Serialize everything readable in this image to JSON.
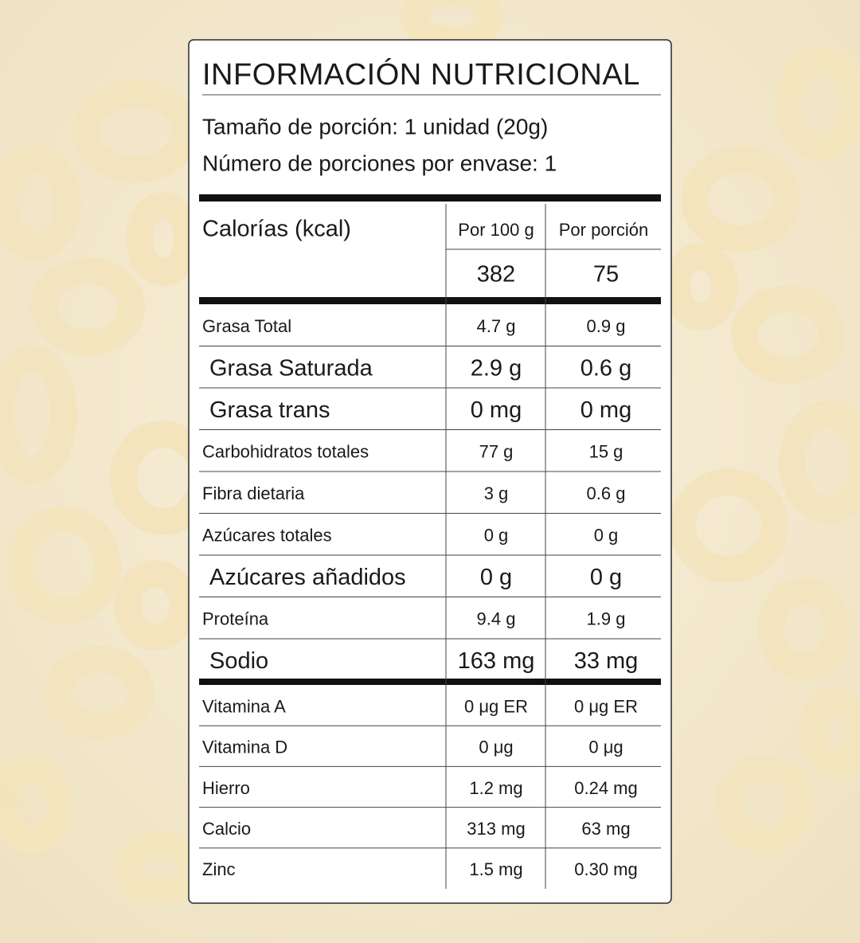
{
  "header": {
    "title": "INFORMACIÓN NUTRICIONAL",
    "serving_size": "Tamaño de porción: 1 unidad (20g)",
    "servings_per_container": "Número de porciones por envase: 1"
  },
  "table": {
    "calories_label": "Calorías (kcal)",
    "columns": [
      "Por 100 g",
      "Por porción"
    ],
    "calories": [
      "382",
      "75"
    ],
    "rows": [
      {
        "name": "Grasa Total",
        "per_100g": "4.7 g",
        "per_serving": "0.9 g",
        "bold": false
      },
      {
        "name": "Grasa Saturada",
        "per_100g": "2.9 g",
        "per_serving": "0.6 g",
        "bold": true
      },
      {
        "name": "Grasa trans",
        "per_100g": "0 mg",
        "per_serving": "0 mg",
        "bold": true
      },
      {
        "name": "Carbohidratos totales",
        "per_100g": "77 g",
        "per_serving": "15 g",
        "bold": false
      },
      {
        "name": "Fibra dietaria",
        "per_100g": "3 g",
        "per_serving": "0.6 g",
        "bold": false
      },
      {
        "name": "Azúcares totales",
        "per_100g": "0 g",
        "per_serving": "0 g",
        "bold": false
      },
      {
        "name": "Azúcares añadidos",
        "per_100g": "0 g",
        "per_serving": "0 g",
        "bold": true
      },
      {
        "name": "Proteína",
        "per_100g": "9.4 g",
        "per_serving": "1.9 g",
        "bold": false
      },
      {
        "name": "Sodio",
        "per_100g": "163 mg",
        "per_serving": "33 mg",
        "bold": true
      }
    ],
    "micronutrients": [
      {
        "name": "Vitamina A",
        "per_100g": "0 μg ER",
        "per_serving": "0 μg ER",
        "bold": false
      },
      {
        "name": "Vitamina D",
        "per_100g": "0 μg",
        "per_serving": "0 μg",
        "bold": false
      },
      {
        "name": "Hierro",
        "per_100g": "1.2 mg",
        "per_serving": "0.24 mg",
        "bold": false
      },
      {
        "name": "Calcio",
        "per_100g": "313 mg",
        "per_serving": "63 mg",
        "bold": false
      },
      {
        "name": "Zinc",
        "per_100g": "1.5 mg",
        "per_serving": "0.30 mg",
        "bold": false
      }
    ]
  }
}
